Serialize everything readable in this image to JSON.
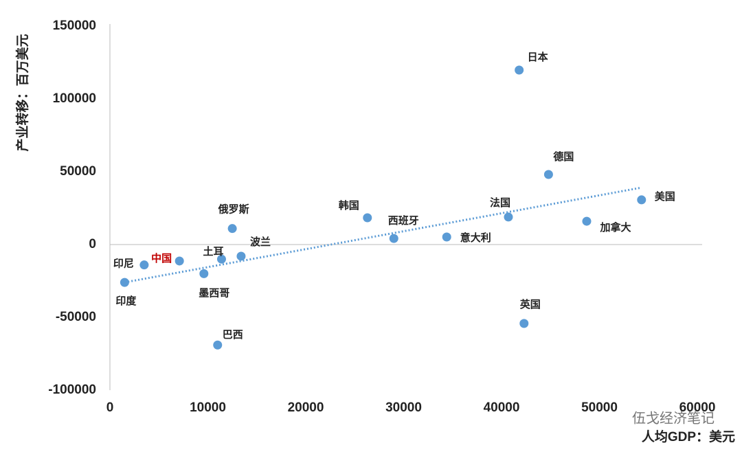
{
  "chart_data": {
    "type": "scatter",
    "x_label": "人均GDP：美元",
    "y_label": "产业转移：百万美元",
    "watermark": "伍戈经济笔记",
    "labels": [
      "印度",
      "印尼",
      "中国",
      "墨西哥",
      "土耳",
      "巴西",
      "俄罗斯",
      "波兰",
      "韩国",
      "西班牙",
      "意大利",
      "法国",
      "日本",
      "英国",
      "德国",
      "加拿大",
      "美国"
    ],
    "x": [
      1500,
      3500,
      7100,
      9600,
      11400,
      11000,
      12500,
      13400,
      26300,
      29000,
      34400,
      40700,
      41800,
      42300,
      44800,
      48700,
      54300
    ],
    "values": [
      -26000,
      -14000,
      -11300,
      -20000,
      -10000,
      -69000,
      11000,
      -8000,
      18400,
      4200,
      5200,
      18900,
      119800,
      -54200,
      48100,
      16000,
      30700
    ],
    "label_colors": [
      "#222222",
      "#222222",
      "#c00000",
      "#222222",
      "#222222",
      "#222222",
      "#222222",
      "#222222",
      "#222222",
      "#222222",
      "#222222",
      "#222222",
      "#222222",
      "#222222",
      "#222222",
      "#222222",
      "#222222"
    ],
    "color": "#5b9bd5",
    "trendline": true,
    "xlim": [
      0,
      60000
    ],
    "ylim": [
      -100000,
      150000
    ],
    "xticks": [
      0,
      10000,
      20000,
      30000,
      40000,
      50000,
      60000
    ],
    "yticks": [
      -100000,
      -50000,
      0,
      50000,
      100000,
      150000
    ]
  }
}
